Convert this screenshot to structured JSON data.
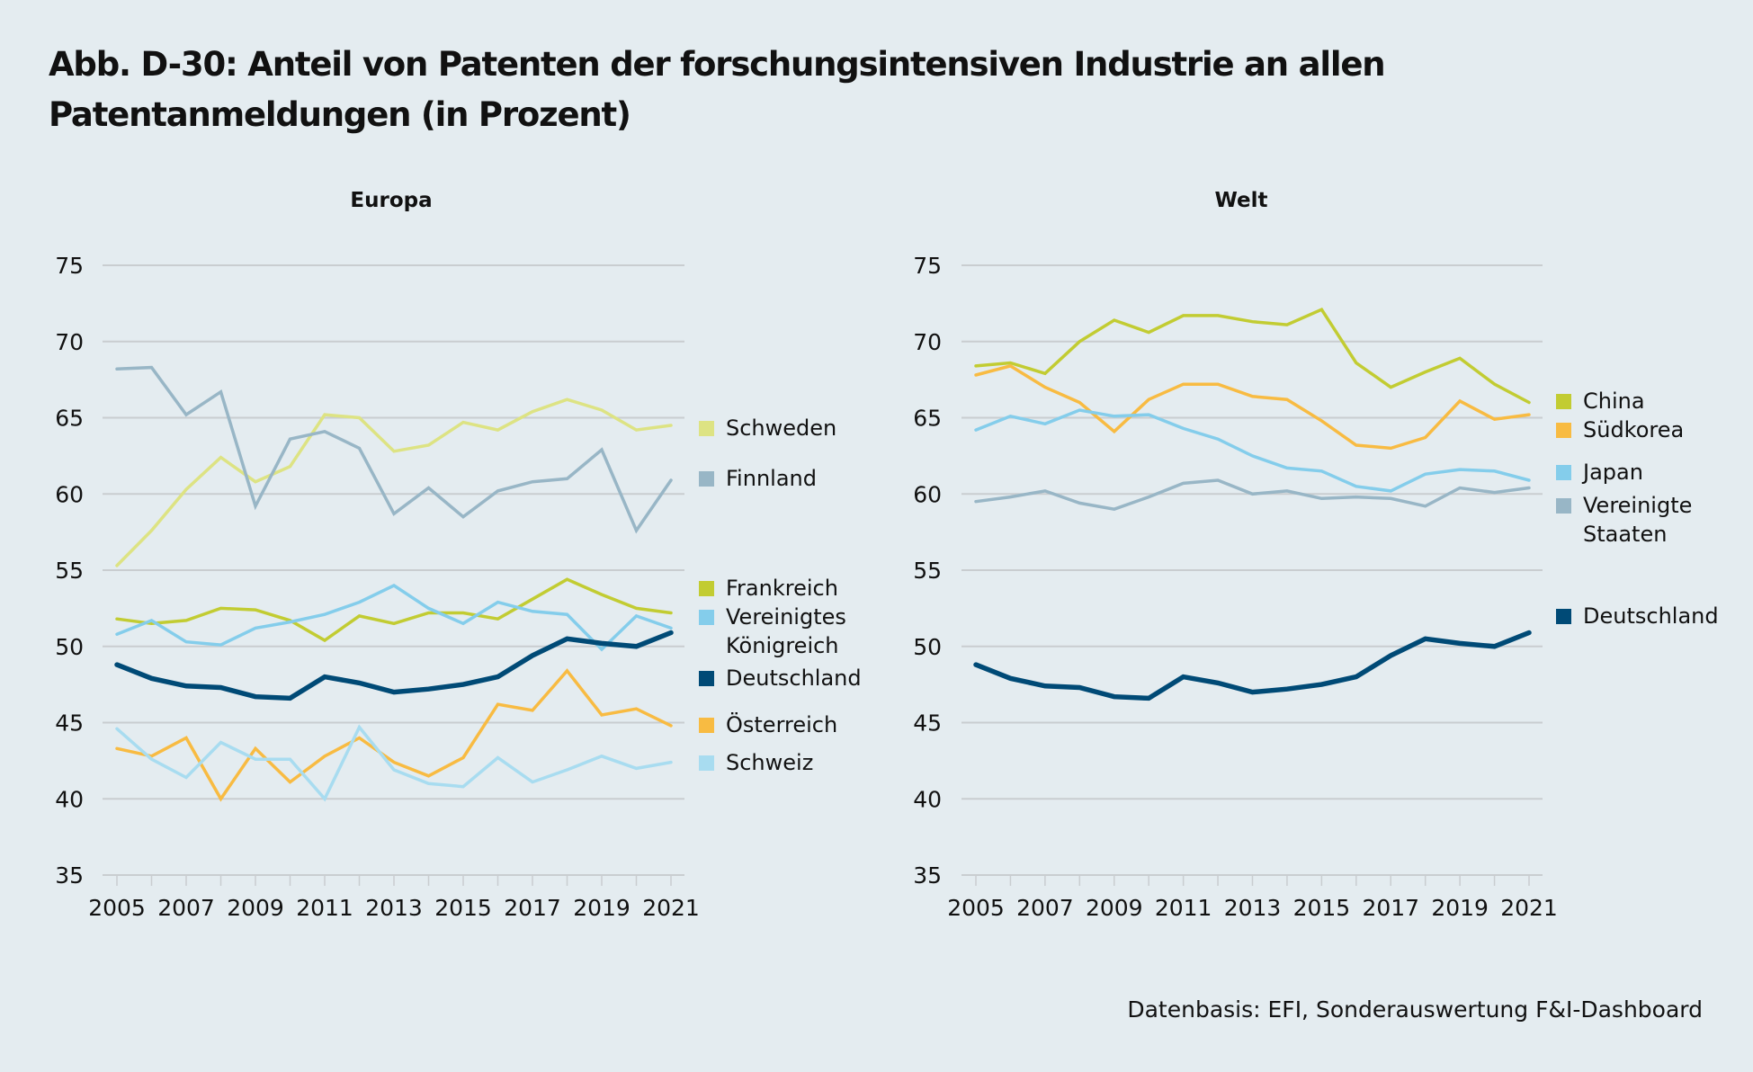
{
  "title": "Abb. D-30: Anteil von Patenten der forschungsintensiven Industrie an allen Patentanmeldungen (in Prozent)",
  "source": "Datenbasis: EFI, Sonderauswertung F&I-Dashboard",
  "colors": {
    "Schweden": "#dde383",
    "Finnland": "#98b6c6",
    "Frankreich": "#c2cc32",
    "Vereinigtes Königreich": "#84cdeb",
    "Deutschland": "#004a76",
    "Österreich": "#f8bb42",
    "Schweiz": "#a8dcf0",
    "China": "#c2cc32",
    "Südkorea": "#f8bb42",
    "Japan": "#84cdeb",
    "Vereinigte Staaten": "#98b6c6"
  },
  "chart_data": [
    {
      "type": "line",
      "title": "Europa",
      "xlabel": "",
      "ylabel": "",
      "x": [
        2005,
        2006,
        2007,
        2008,
        2009,
        2010,
        2011,
        2012,
        2013,
        2014,
        2015,
        2016,
        2017,
        2018,
        2019,
        2020,
        2021
      ],
      "x_tick_labels": [
        "2005",
        "2007",
        "2009",
        "2011",
        "2013",
        "2015",
        "2017",
        "2019",
        "2021"
      ],
      "y_tick_labels": [
        "75",
        "70",
        "65",
        "60",
        "55",
        "50",
        "45",
        "40",
        "35"
      ],
      "ylim": [
        35,
        75
      ],
      "grid": true,
      "legend_position": "right",
      "series": [
        {
          "name": "Schweden",
          "legend_lines": [
            "Schweden"
          ],
          "values": [
            55.3,
            57.6,
            60.3,
            62.4,
            60.8,
            61.8,
            65.2,
            65.0,
            62.8,
            63.2,
            64.7,
            64.2,
            65.4,
            66.2,
            65.5,
            64.2,
            64.5
          ]
        },
        {
          "name": "Finnland",
          "legend_lines": [
            "Finnland"
          ],
          "values": [
            68.2,
            68.3,
            65.2,
            66.7,
            59.2,
            63.6,
            64.1,
            63.0,
            58.7,
            60.4,
            58.5,
            60.2,
            60.8,
            61.0,
            62.9,
            57.6,
            60.9
          ]
        },
        {
          "name": "Frankreich",
          "legend_lines": [
            "Frankreich"
          ],
          "values": [
            51.8,
            51.5,
            51.7,
            52.5,
            52.4,
            51.7,
            50.4,
            52.0,
            51.5,
            52.2,
            52.2,
            51.8,
            53.1,
            54.4,
            53.4,
            52.5,
            52.2
          ]
        },
        {
          "name": "Vereinigtes Königreich",
          "legend_lines": [
            "Vereinigtes",
            "Königreich"
          ],
          "values": [
            50.8,
            51.7,
            50.3,
            50.1,
            51.2,
            51.6,
            52.1,
            52.9,
            54.0,
            52.5,
            51.5,
            52.9,
            52.3,
            52.1,
            49.8,
            52.0,
            51.2
          ]
        },
        {
          "name": "Deutschland",
          "legend_lines": [
            "Deutschland"
          ],
          "values": [
            48.8,
            47.9,
            47.4,
            47.3,
            46.7,
            46.6,
            48.0,
            47.6,
            47.0,
            47.2,
            47.5,
            48.0,
            49.4,
            50.5,
            50.2,
            50.0,
            50.9
          ]
        },
        {
          "name": "Österreich",
          "legend_lines": [
            "Österreich"
          ],
          "values": [
            43.3,
            42.8,
            44.0,
            40.0,
            43.3,
            41.1,
            42.8,
            44.0,
            42.4,
            41.5,
            42.7,
            46.2,
            45.8,
            48.4,
            45.5,
            45.9,
            44.8
          ]
        },
        {
          "name": "Schweiz",
          "legend_lines": [
            "Schweiz"
          ],
          "values": [
            44.6,
            42.6,
            41.4,
            43.7,
            42.6,
            42.6,
            40.0,
            44.7,
            41.9,
            41.0,
            40.8,
            42.7,
            41.1,
            41.9,
            42.8,
            42.0,
            42.4
          ]
        }
      ]
    },
    {
      "type": "line",
      "title": "Welt",
      "xlabel": "",
      "ylabel": "",
      "x": [
        2005,
        2006,
        2007,
        2008,
        2009,
        2010,
        2011,
        2012,
        2013,
        2014,
        2015,
        2016,
        2017,
        2018,
        2019,
        2020,
        2021
      ],
      "x_tick_labels": [
        "2005",
        "2007",
        "2009",
        "2011",
        "2013",
        "2015",
        "2017",
        "2019",
        "2021"
      ],
      "y_tick_labels": [
        "75",
        "70",
        "65",
        "60",
        "55",
        "50",
        "45",
        "40",
        "35"
      ],
      "ylim": [
        35,
        75
      ],
      "grid": true,
      "legend_position": "right",
      "series": [
        {
          "name": "China",
          "legend_lines": [
            "China"
          ],
          "values": [
            68.4,
            68.6,
            67.9,
            70.0,
            71.4,
            70.6,
            71.7,
            71.7,
            71.3,
            71.1,
            72.1,
            68.6,
            67.0,
            68.0,
            68.9,
            67.2,
            66.0
          ]
        },
        {
          "name": "Südkorea",
          "legend_lines": [
            "Südkorea"
          ],
          "values": [
            67.8,
            68.4,
            67.0,
            66.0,
            64.1,
            66.2,
            67.2,
            67.2,
            66.4,
            66.2,
            64.8,
            63.2,
            63.0,
            63.7,
            66.1,
            64.9,
            65.2
          ]
        },
        {
          "name": "Japan",
          "legend_lines": [
            "Japan"
          ],
          "values": [
            64.2,
            65.1,
            64.6,
            65.5,
            65.1,
            65.2,
            64.3,
            63.6,
            62.5,
            61.7,
            61.5,
            60.5,
            60.2,
            61.3,
            61.6,
            61.5,
            60.9
          ]
        },
        {
          "name": "Vereinigte Staaten",
          "legend_lines": [
            "Vereinigte",
            "Staaten"
          ],
          "values": [
            59.5,
            59.8,
            60.2,
            59.4,
            59.0,
            59.8,
            60.7,
            60.9,
            60.0,
            60.2,
            59.7,
            59.8,
            59.7,
            59.2,
            60.4,
            60.1,
            60.4
          ]
        },
        {
          "name": "Deutschland",
          "legend_lines": [
            "Deutschland"
          ],
          "values": [
            48.8,
            47.9,
            47.4,
            47.3,
            46.7,
            46.6,
            48.0,
            47.6,
            47.0,
            47.2,
            47.5,
            48.0,
            49.4,
            50.5,
            50.2,
            50.0,
            50.9
          ]
        }
      ]
    }
  ]
}
